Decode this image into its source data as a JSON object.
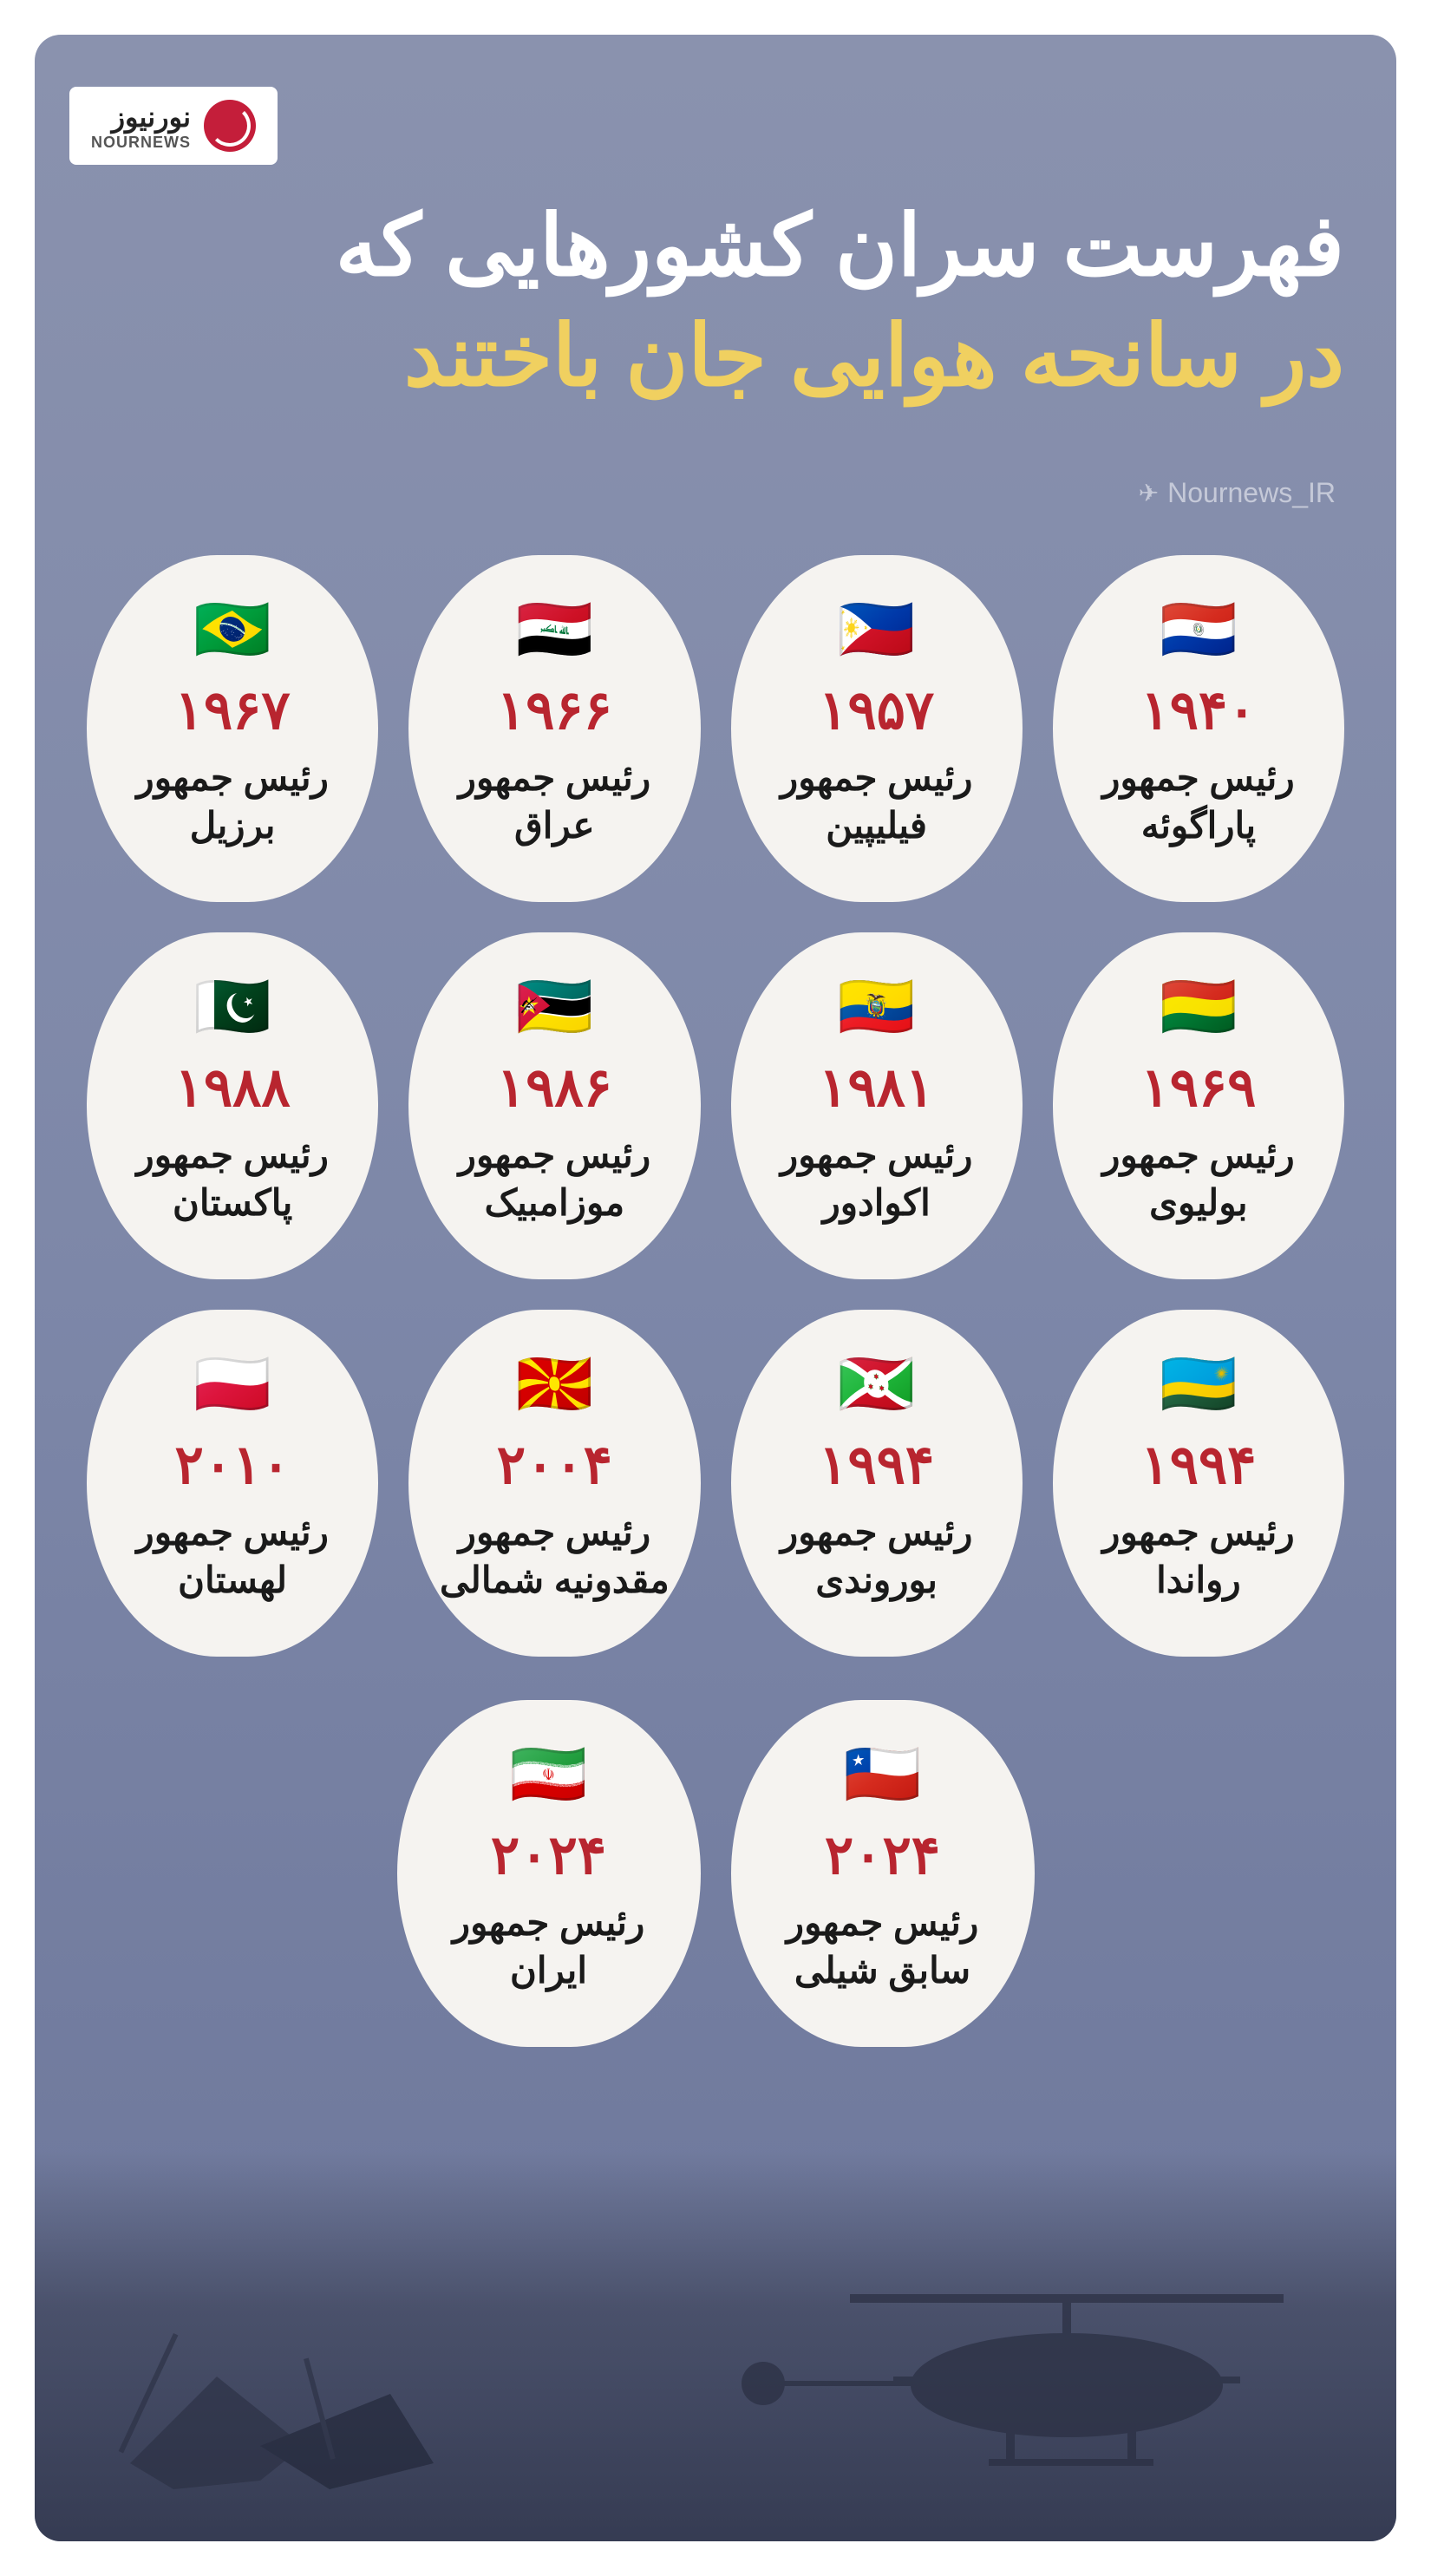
{
  "logo": {
    "persian": "نورنیوز",
    "english": "NOURNEWS"
  },
  "title": {
    "line1": "فهرست سران کشورهایی که",
    "line2": "در سانحه هوایی جان باختند"
  },
  "telegram": {
    "handle": "Nournews_IR"
  },
  "colors": {
    "title_white": "#ffffff",
    "title_yellow": "#f0d060",
    "year_red": "#b8252f",
    "text_dark": "#1a1a1a",
    "card_bg": "#f5f3f0",
    "bg_gradient_start": "#8a92ae",
    "bg_gradient_end": "#6b7599"
  },
  "entries": [
    {
      "flag": "🇵🇾",
      "year": "۱۹۴۰",
      "title": "رئیس جمهور",
      "country": "پاراگوئه"
    },
    {
      "flag": "🇵🇭",
      "year": "۱۹۵۷",
      "title": "رئیس جمهور",
      "country": "فیلیپین"
    },
    {
      "flag": "🇮🇶",
      "year": "۱۹۶۶",
      "title": "رئیس جمهور",
      "country": "عراق"
    },
    {
      "flag": "🇧🇷",
      "year": "۱۹۶۷",
      "title": "رئیس جمهور",
      "country": "برزیل"
    },
    {
      "flag": "🇧🇴",
      "year": "۱۹۶۹",
      "title": "رئیس جمهور",
      "country": "بولیوی"
    },
    {
      "flag": "🇪🇨",
      "year": "۱۹۸۱",
      "title": "رئیس جمهور",
      "country": "اکوادور"
    },
    {
      "flag": "🇲🇿",
      "year": "۱۹۸۶",
      "title": "رئیس جمهور",
      "country": "موزامبیک"
    },
    {
      "flag": "🇵🇰",
      "year": "۱۹۸۸",
      "title": "رئیس جمهور",
      "country": "پاکستان"
    },
    {
      "flag": "🇷🇼",
      "year": "۱۹۹۴",
      "title": "رئیس جمهور",
      "country": "رواندا"
    },
    {
      "flag": "🇧🇮",
      "year": "۱۹۹۴",
      "title": "رئیس جمهور",
      "country": "بوروندی"
    },
    {
      "flag": "🇲🇰",
      "year": "۲۰۰۴",
      "title": "رئیس جمهور",
      "country": "مقدونیه شمالی"
    },
    {
      "flag": "🇵🇱",
      "year": "۲۰۱۰",
      "title": "رئیس جمهور",
      "country": "لهستان"
    }
  ],
  "last_row": [
    {
      "flag": "🇨🇱",
      "year": "۲۰۲۴",
      "title": "رئیس جمهور",
      "country": "سابق شیلی"
    },
    {
      "flag": "🇮🇷",
      "year": "۲۰۲۴",
      "title": "رئیس جمهور",
      "country": "ایران"
    }
  ]
}
